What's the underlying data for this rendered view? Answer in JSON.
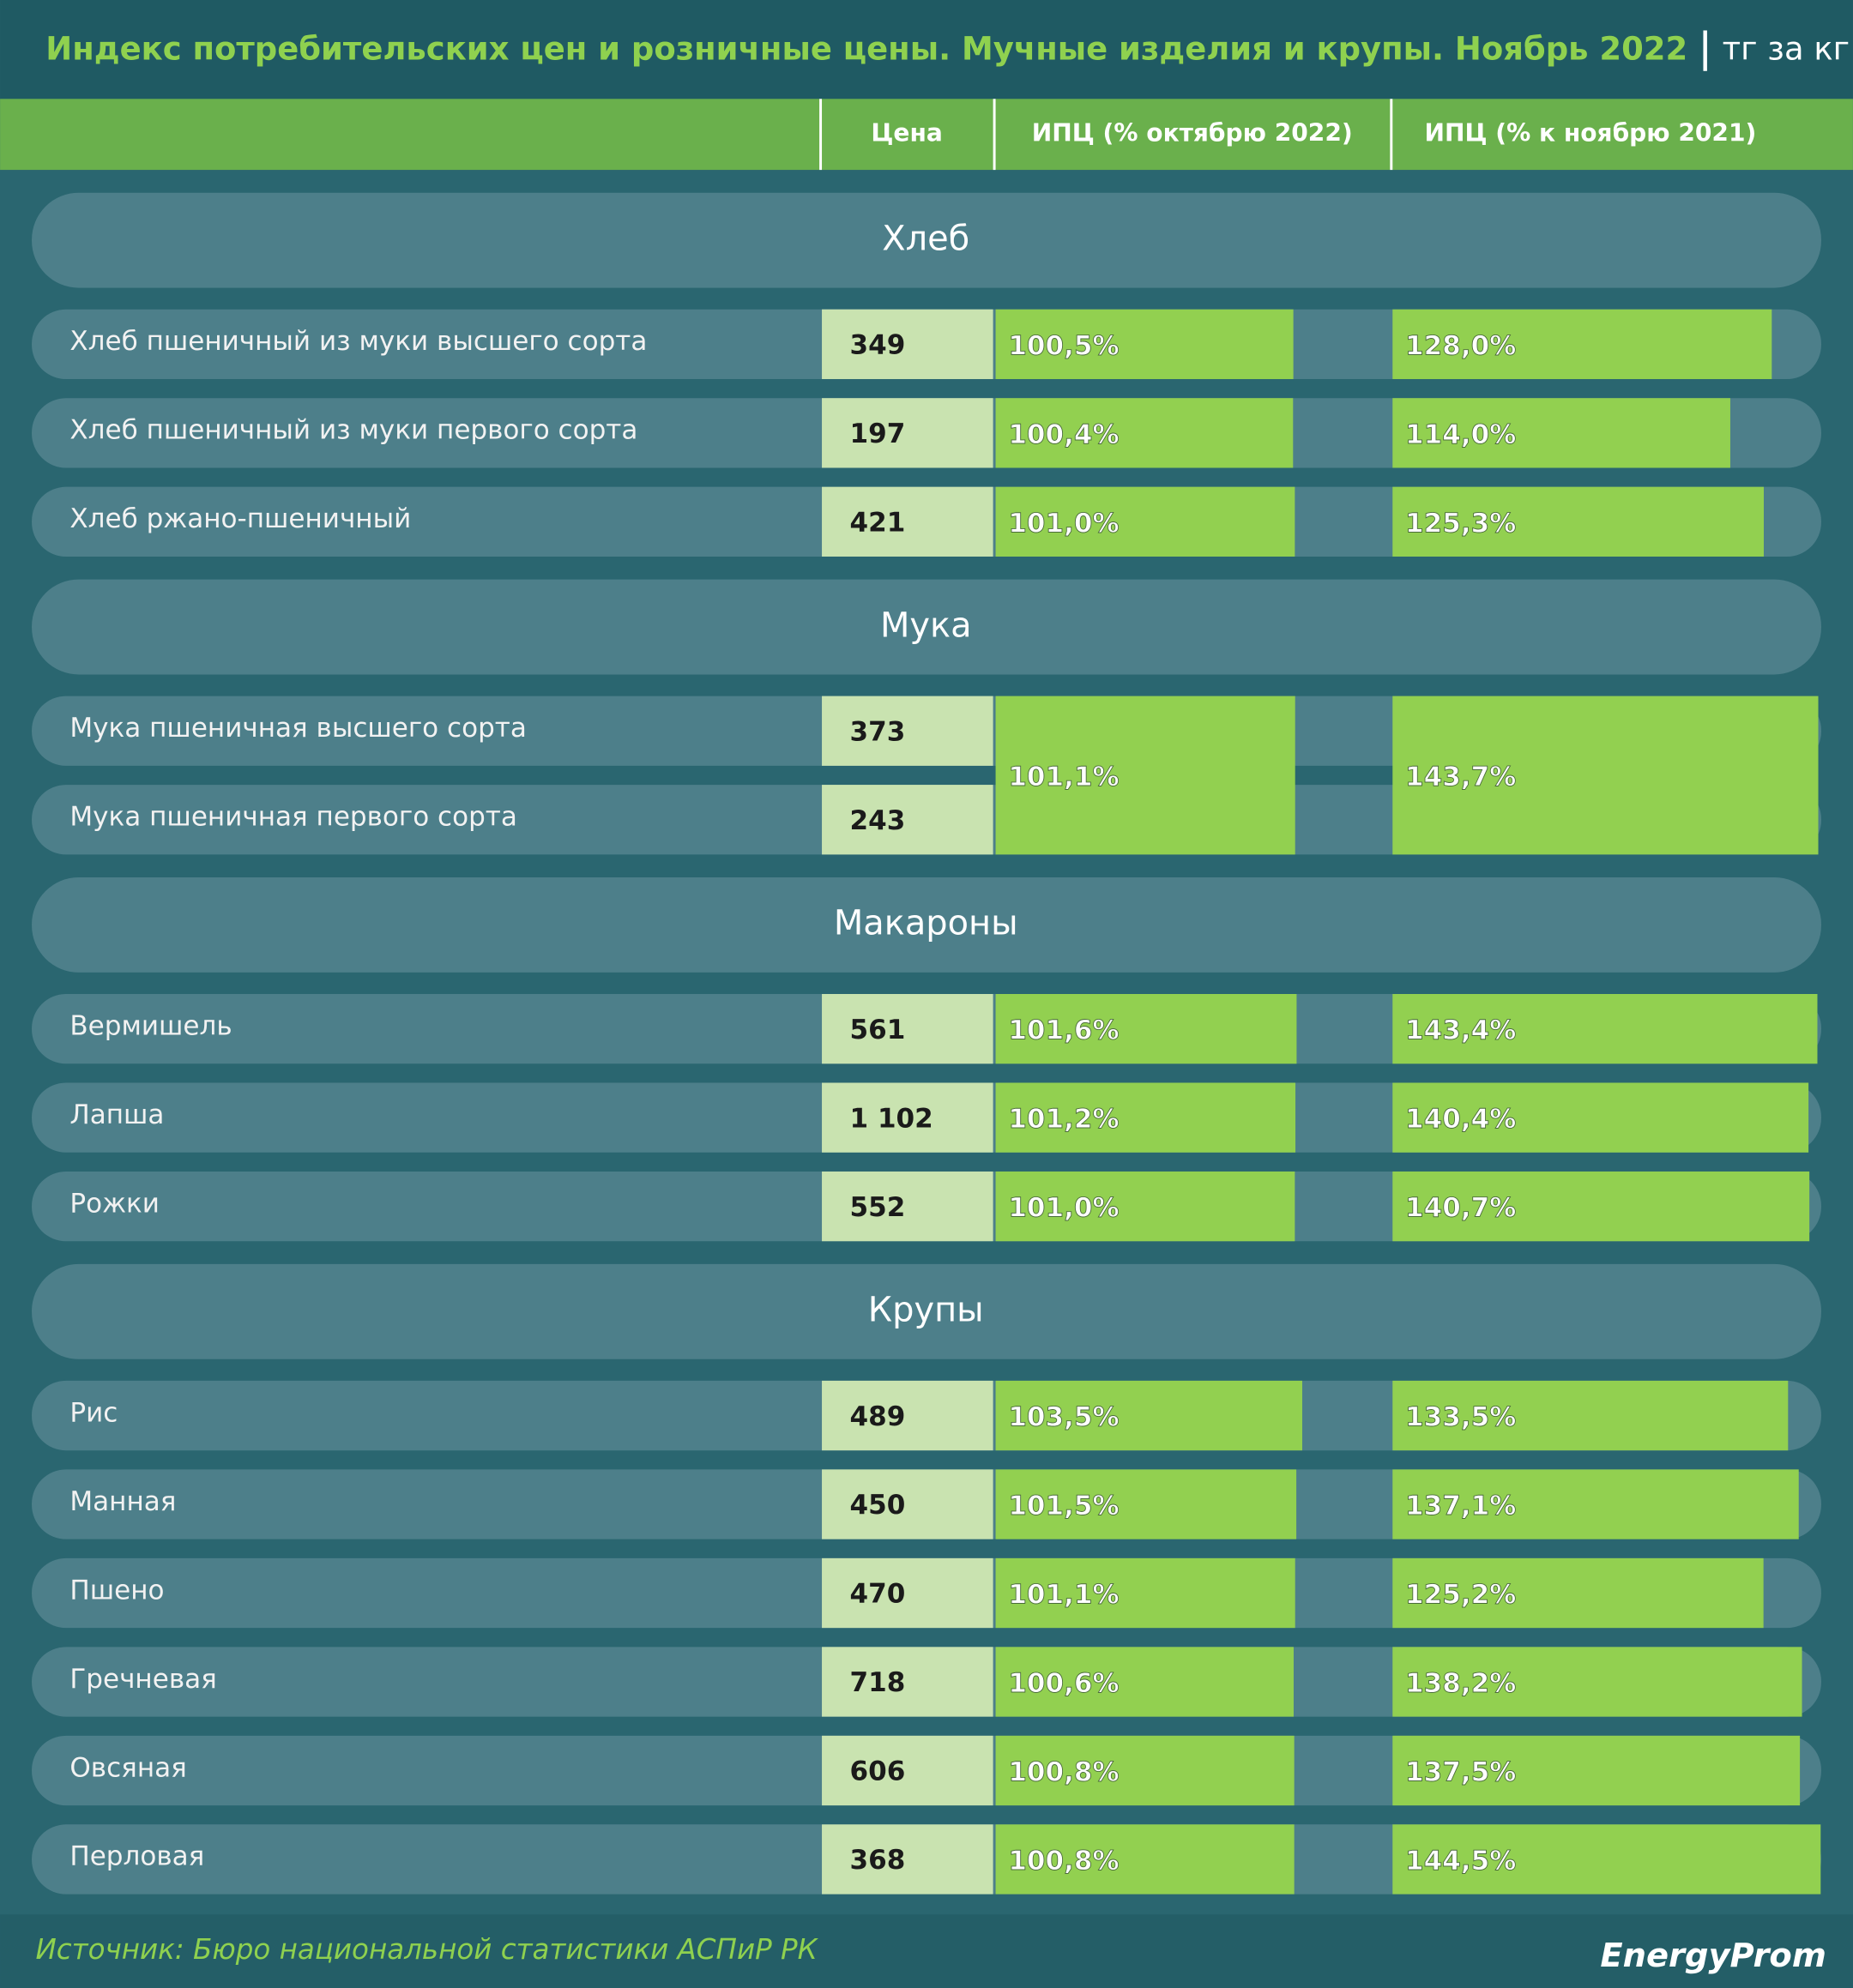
{
  "title": "Индекс потребительских цен и розничные цены. Мучные изделия и крупы. Ноябрь 2022",
  "unit": "тг за кг",
  "columns": {
    "price": "Цена",
    "cpi_oct": "ИПЦ (% октябрю 2022)",
    "cpi_yoy": "ИПЦ (% к ноябрю 2021)"
  },
  "sections": [
    {
      "title": "Хлеб",
      "groups": [
        {
          "items": [
            {
              "name": "Хлеб пшеничный из муки высшего сорта",
              "price": "349"
            }
          ],
          "cpi_oct": 100.5,
          "cpi_oct_label": "100,5%",
          "cpi_yoy": 128.0,
          "cpi_yoy_label": "128,0%"
        },
        {
          "items": [
            {
              "name": "Хлеб пшеничный из муки первого сорта",
              "price": "197"
            }
          ],
          "cpi_oct": 100.4,
          "cpi_oct_label": "100,4%",
          "cpi_yoy": 114.0,
          "cpi_yoy_label": "114,0%"
        },
        {
          "items": [
            {
              "name": "Хлеб ржано-пшеничный",
              "price": "421"
            }
          ],
          "cpi_oct": 101.0,
          "cpi_oct_label": "101,0%",
          "cpi_yoy": 125.3,
          "cpi_yoy_label": "125,3%"
        }
      ]
    },
    {
      "title": "Мука",
      "groups": [
        {
          "items": [
            {
              "name": "Мука пшеничная высшего сорта",
              "price": "373"
            },
            {
              "name": "Мука пшеничная первого сорта",
              "price": "243"
            }
          ],
          "cpi_oct": 101.1,
          "cpi_oct_label": "101,1%",
          "cpi_yoy": 143.7,
          "cpi_yoy_label": "143,7%"
        }
      ]
    },
    {
      "title": "Макароны",
      "groups": [
        {
          "items": [
            {
              "name": "Вермишель",
              "price": "561"
            }
          ],
          "cpi_oct": 101.6,
          "cpi_oct_label": "101,6%",
          "cpi_yoy": 143.4,
          "cpi_yoy_label": "143,4%"
        },
        {
          "items": [
            {
              "name": "Лапша",
              "price": "1 102"
            }
          ],
          "cpi_oct": 101.2,
          "cpi_oct_label": "101,2%",
          "cpi_yoy": 140.4,
          "cpi_yoy_label": "140,4%"
        },
        {
          "items": [
            {
              "name": "Рожки",
              "price": "552"
            }
          ],
          "cpi_oct": 101.0,
          "cpi_oct_label": "101,0%",
          "cpi_yoy": 140.7,
          "cpi_yoy_label": "140,7%"
        }
      ]
    },
    {
      "title": "Крупы",
      "groups": [
        {
          "items": [
            {
              "name": "Рис",
              "price": "489"
            }
          ],
          "cpi_oct": 103.5,
          "cpi_oct_label": "103,5%",
          "cpi_yoy": 133.5,
          "cpi_yoy_label": "133,5%"
        },
        {
          "items": [
            {
              "name": "Манная",
              "price": "450"
            }
          ],
          "cpi_oct": 101.5,
          "cpi_oct_label": "101,5%",
          "cpi_yoy": 137.1,
          "cpi_yoy_label": "137,1%"
        },
        {
          "items": [
            {
              "name": "Пшено",
              "price": "470"
            }
          ],
          "cpi_oct": 101.1,
          "cpi_oct_label": "101,1%",
          "cpi_yoy": 125.2,
          "cpi_yoy_label": "125,2%"
        },
        {
          "items": [
            {
              "name": "Гречневая",
              "price": "718"
            }
          ],
          "cpi_oct": 100.6,
          "cpi_oct_label": "100,6%",
          "cpi_yoy": 138.2,
          "cpi_yoy_label": "138,2%"
        },
        {
          "items": [
            {
              "name": "Овсяная",
              "price": "606"
            }
          ],
          "cpi_oct": 100.8,
          "cpi_oct_label": "100,8%",
          "cpi_yoy": 137.5,
          "cpi_yoy_label": "137,5%"
        },
        {
          "items": [
            {
              "name": "Перловая",
              "price": "368"
            }
          ],
          "cpi_oct": 100.8,
          "cpi_oct_label": "100,8%",
          "cpi_yoy": 144.5,
          "cpi_yoy_label": "144,5%"
        }
      ]
    }
  ],
  "source": "Источник: Бюро национальной статистики АСПиР РК",
  "logo": "EnergyProm"
}
